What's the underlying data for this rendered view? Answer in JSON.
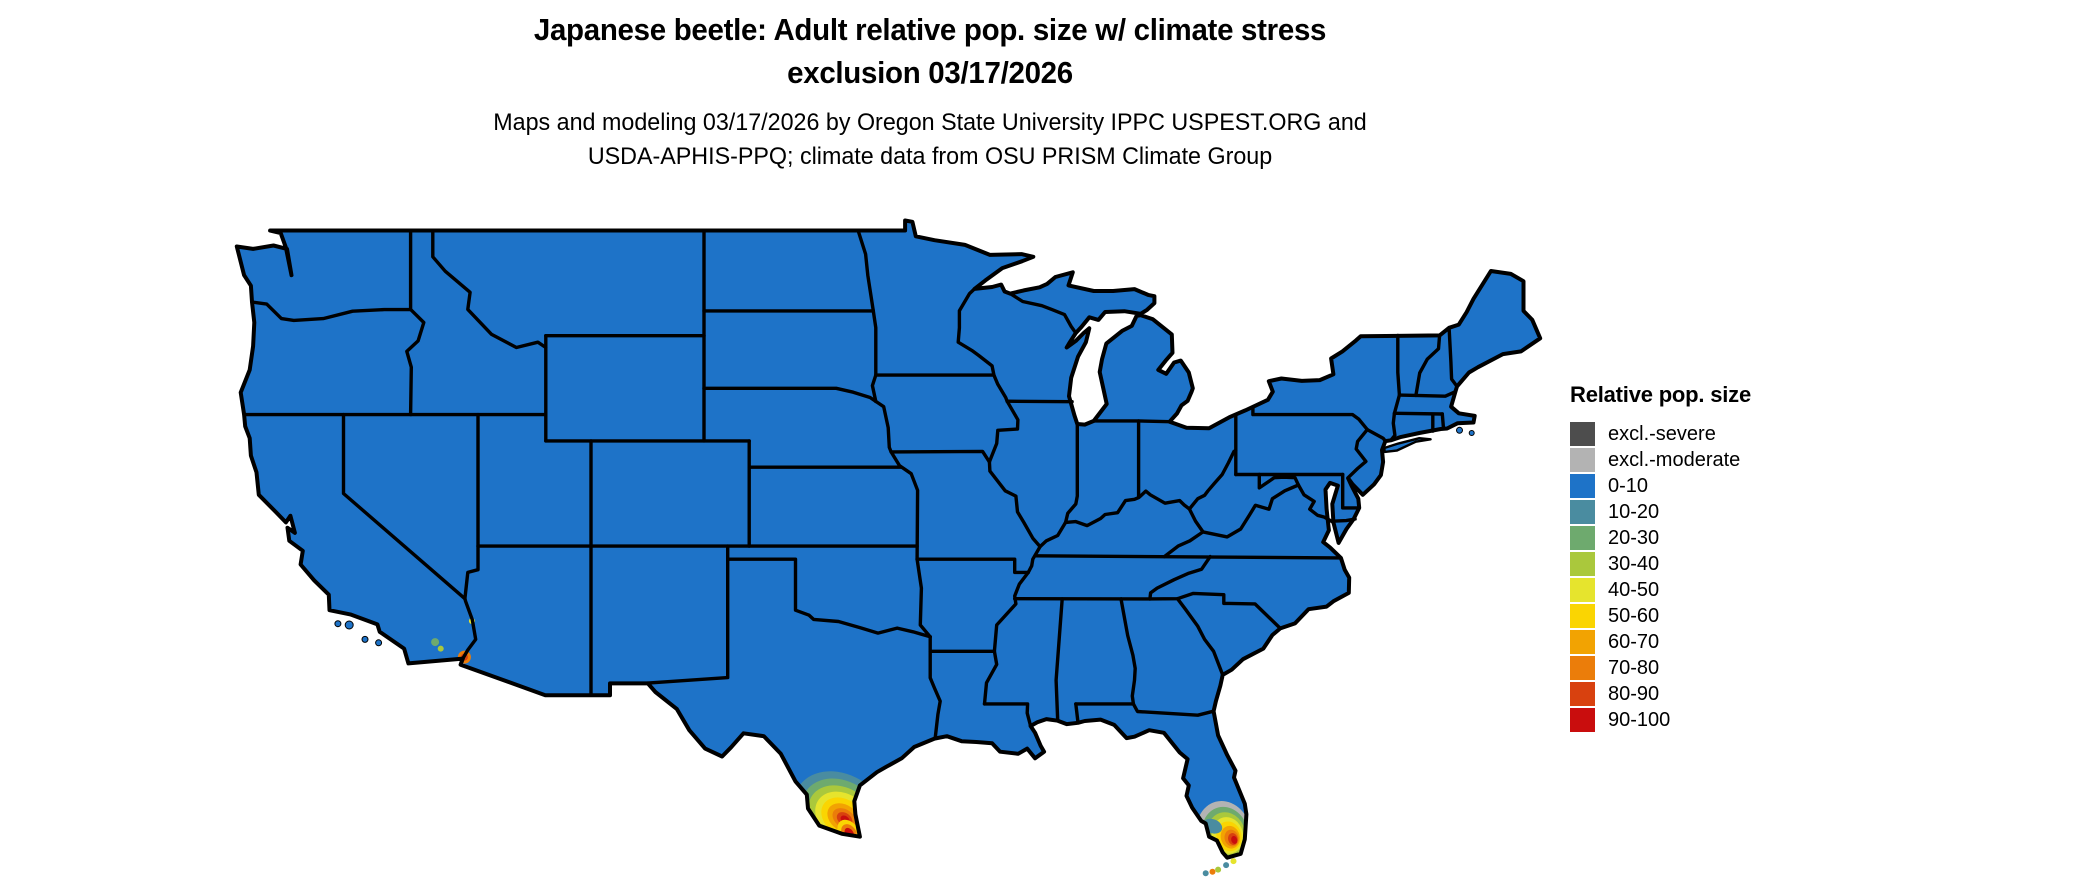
{
  "title": {
    "line1": "Japanese beetle: Adult relative pop. size w/ climate stress",
    "line2": "exclusion 03/17/2026"
  },
  "subtitle": {
    "line1": "Maps and modeling 03/17/2026 by Oregon State University IPPC USPEST.ORG and",
    "line2": "USDA-APHIS-PPQ; climate data from OSU PRISM Climate Group"
  },
  "legend": {
    "title": "Relative pop. size",
    "items": [
      {
        "label": "excl.-severe",
        "color": "#4d4d4d"
      },
      {
        "label": "excl.-moderate",
        "color": "#b3b3b3"
      },
      {
        "label": "0-10",
        "color": "#1e73c8"
      },
      {
        "label": "10-20",
        "color": "#4a8ca0"
      },
      {
        "label": "20-30",
        "color": "#6eaa6e"
      },
      {
        "label": "30-40",
        "color": "#aac83c"
      },
      {
        "label": "40-50",
        "color": "#e6e42d"
      },
      {
        "label": "50-60",
        "color": "#fad502"
      },
      {
        "label": "60-70",
        "color": "#f2a302"
      },
      {
        "label": "70-80",
        "color": "#eb7d0a"
      },
      {
        "label": "80-90",
        "color": "#d8410f"
      },
      {
        "label": "90-100",
        "color": "#c90d0d"
      }
    ]
  },
  "map": {
    "background": "#ffffff",
    "base_fill_class": "0-10",
    "base_fill": "#1e73c8",
    "border_color": "#000000",
    "hotspots": [
      {
        "name": "south-texas",
        "region": "Lower Rio Grande Valley, south Texas",
        "max_class": "90-100"
      },
      {
        "name": "south-florida",
        "region": "South Florida peninsula and Keys",
        "max_class": "90-100"
      },
      {
        "name": "southwest-desert",
        "region": "Small spots near lower Colorado River / Salton trough",
        "max_class": "80-90"
      }
    ]
  }
}
